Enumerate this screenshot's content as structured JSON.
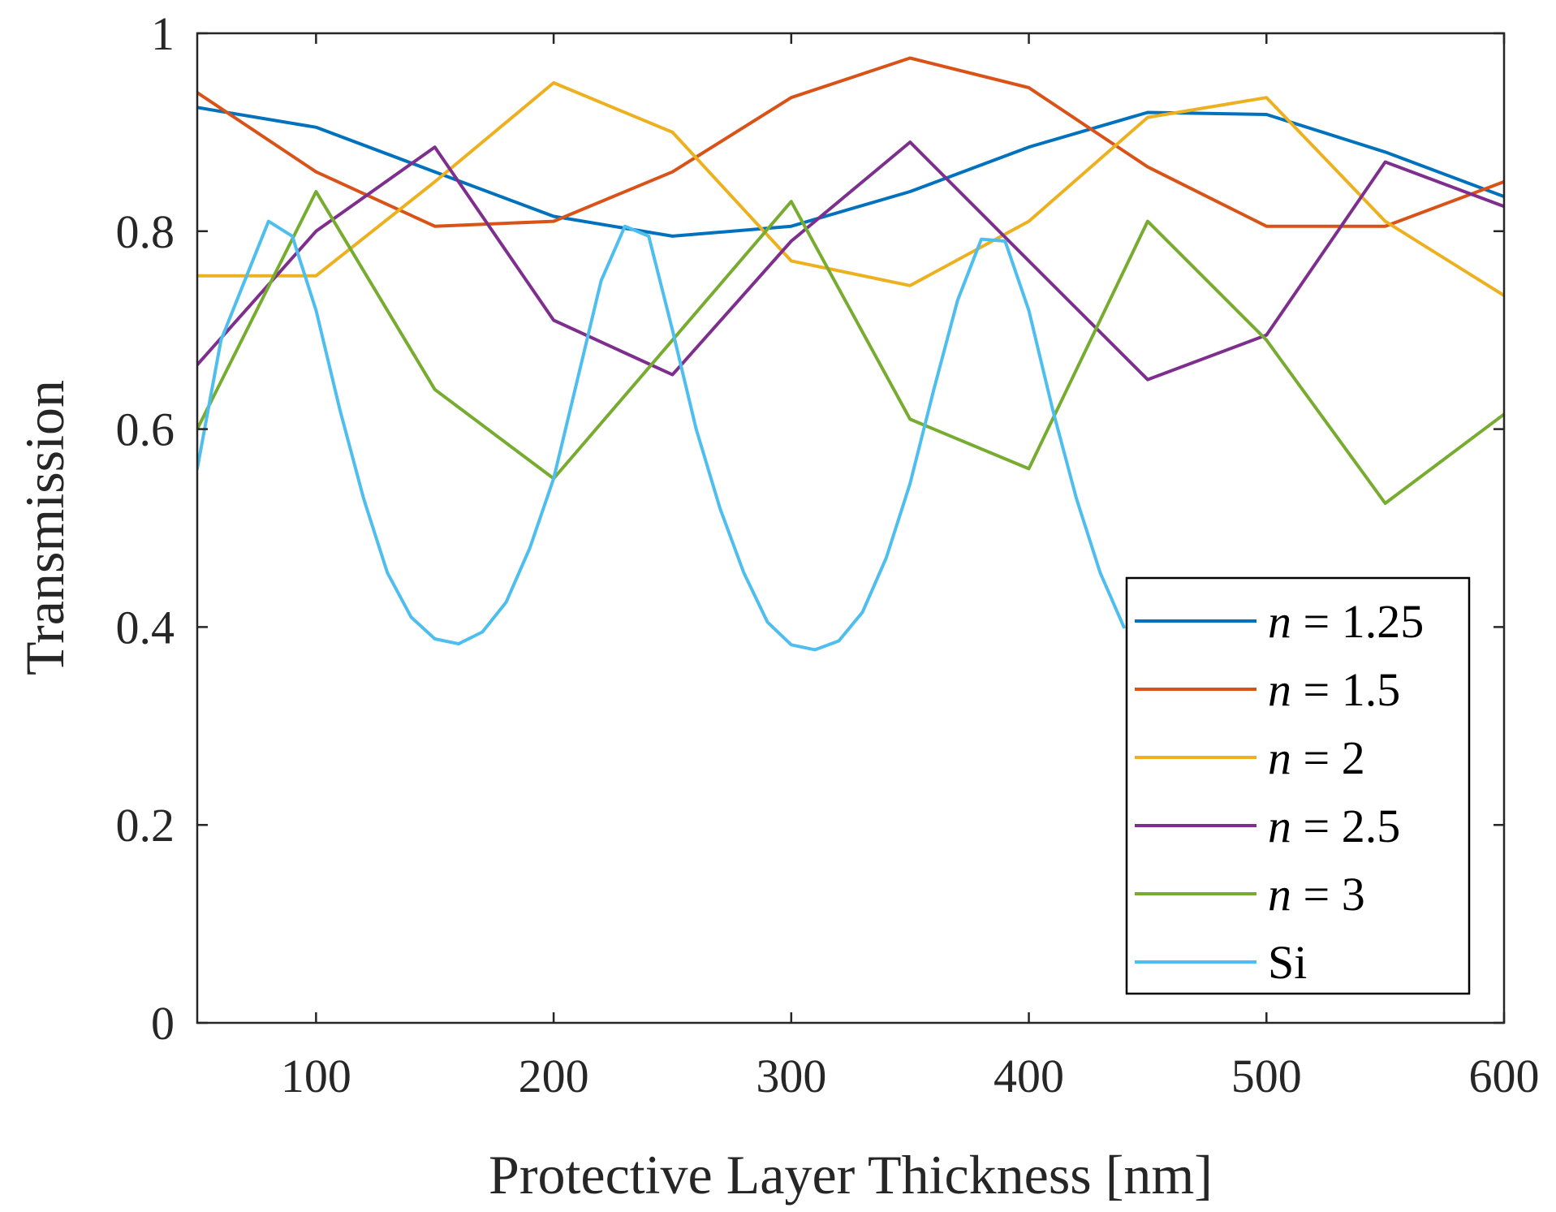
{
  "chart_data": {
    "type": "line",
    "title": "",
    "xlabel": "Protective Layer Thickness [nm]",
    "ylabel": "Transmission",
    "xlim": [
      50,
      600
    ],
    "ylim": [
      0,
      1
    ],
    "xticks": [
      100,
      200,
      300,
      400,
      500,
      600
    ],
    "yticks": [
      0,
      0.2,
      0.4,
      0.6,
      0.8,
      1
    ],
    "xtick_labels": [
      "100",
      "200",
      "300",
      "400",
      "500",
      "600"
    ],
    "ytick_labels": [
      "0",
      "0.2",
      "0.4",
      "0.6",
      "0.8",
      "1"
    ],
    "grid": false,
    "legend_position": "bottom-right",
    "series": [
      {
        "name": "n = 1.25",
        "legend_var": "n",
        "legend_rest": " = 1.25",
        "color": "#0072BD",
        "x": [
          50,
          100,
          150,
          200,
          250,
          300,
          350,
          400,
          450,
          500,
          550,
          600
        ],
        "y": [
          0.925,
          0.905,
          0.86,
          0.815,
          0.795,
          0.805,
          0.84,
          0.885,
          0.92,
          0.918,
          0.88,
          0.835
        ]
      },
      {
        "name": "n = 1.5",
        "legend_var": "n",
        "legend_rest": " = 1.5",
        "color": "#D95319",
        "x": [
          50,
          100,
          150,
          200,
          250,
          300,
          350,
          400,
          450,
          500,
          550,
          600
        ],
        "y": [
          0.94,
          0.86,
          0.805,
          0.81,
          0.86,
          0.935,
          0.975,
          0.945,
          0.865,
          0.805,
          0.805,
          0.85
        ]
      },
      {
        "name": "n = 2",
        "legend_var": "n",
        "legend_rest": " = 2",
        "color": "#EDB120",
        "x": [
          50,
          100,
          150,
          200,
          250,
          300,
          350,
          400,
          450,
          500,
          550,
          600
        ],
        "y": [
          0.755,
          0.755,
          0.85,
          0.95,
          0.9,
          0.77,
          0.745,
          0.81,
          0.915,
          0.935,
          0.81,
          0.735
        ]
      },
      {
        "name": "n = 2.5",
        "legend_var": "n",
        "legend_rest": " = 2.5",
        "color": "#7E2F8E",
        "x": [
          50,
          100,
          150,
          200,
          250,
          300,
          350,
          400,
          450,
          500,
          550,
          600
        ],
        "y": [
          0.665,
          0.8,
          0.885,
          0.71,
          0.655,
          0.79,
          0.89,
          0.77,
          0.65,
          0.695,
          0.87,
          0.825
        ]
      },
      {
        "name": "n = 3",
        "legend_var": "n",
        "legend_rest": " = 3",
        "color": "#77AC30",
        "x": [
          50,
          100,
          150,
          200,
          250,
          300,
          350,
          400,
          450,
          500,
          550,
          600
        ],
        "y": [
          0.6,
          0.84,
          0.64,
          0.55,
          0.69,
          0.83,
          0.61,
          0.56,
          0.81,
          0.69,
          0.525,
          0.615
        ]
      },
      {
        "name": "Si",
        "legend_var": "",
        "legend_rest": "Si",
        "color": "#4DBEEE",
        "x": [
          50,
          60,
          70,
          80,
          90,
          100,
          110,
          120,
          130,
          140,
          150,
          160,
          170,
          180,
          190,
          200,
          210,
          220,
          230,
          240,
          250,
          260,
          270,
          280,
          290,
          300,
          310,
          320,
          330,
          340,
          350,
          360,
          370,
          380,
          390,
          400,
          410,
          420,
          430,
          440
        ],
        "y": [
          0.56,
          0.69,
          0.75,
          0.81,
          0.795,
          0.72,
          0.62,
          0.53,
          0.455,
          0.41,
          0.388,
          0.383,
          0.395,
          0.425,
          0.48,
          0.55,
          0.65,
          0.75,
          0.805,
          0.795,
          0.7,
          0.6,
          0.52,
          0.455,
          0.405,
          0.382,
          0.377,
          0.386,
          0.415,
          0.47,
          0.545,
          0.64,
          0.73,
          0.792,
          0.79,
          0.72,
          0.62,
          0.53,
          0.455,
          0.4
        ]
      }
    ]
  }
}
